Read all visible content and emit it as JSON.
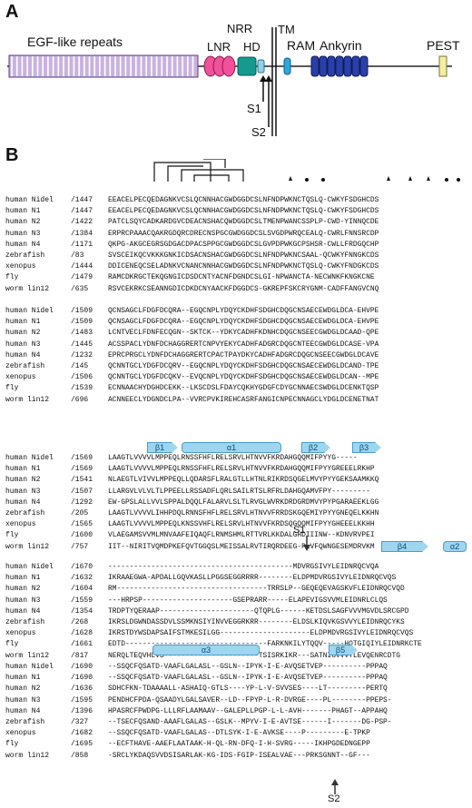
{
  "panels": {
    "a": "A",
    "b": "B"
  },
  "domains": {
    "egf": "EGF-like repeats",
    "nrr": "NRR",
    "lnr": "LNR",
    "hd": "HD",
    "tm": "TM",
    "ram": "RAM",
    "ankyrin": "Ankyrin",
    "pest": "PEST",
    "s1": "S1",
    "s2": "S2"
  },
  "species": [
    "human Nidel",
    "human N1",
    "human N2",
    "human N3",
    "human N4",
    "zebrafish",
    "xenopus",
    "fly",
    "worm lin12"
  ],
  "blocks": [
    {
      "starts": [
        "/1447",
        "/1447",
        "/1422",
        "/1384",
        "/1171",
        "/83",
        "/1444",
        "/1479",
        "/635"
      ],
      "seqs": [
        "EEACELPECQEDAGNKVCSLQCNNHACGWDGGDCSLNFNDPWKNCTQSLQ-CWKYFSDGHCDS",
        "EEACELPECQEDAGNKVCSLQCNNHACGWDGGDCSLNFNDPWKNCTQSLQ-CWKYFSDGHCDS",
        "PATCLSQYCADKARDGVCDEACNSHACQWDGGDCSLTMENPWANCSSPLP-CWD-YINNQCDE",
        "ERPRCPAAACQAKRGDQRCDRECNSPGCGWDGGDCSLSVGDPWRQCEALQ-CWRLFNNSRCDP",
        "QKPG-AKGCEGRSGDGACDPACSPPGCGWDGGDCSLGVPDPWKGCPSHSR-CWLLFRDGQCHP",
        "SVSCEIKQCVKKKGNKICDSACNSHACGWDGGDCSLNFNDPWKNCSAAL-QCWKYFNNGKCDS",
        "DDICENEQCSELADNKVCNANCNNHACGWDGGDCSLNFNDPWKNCTQSLQ-CWKYFNDGKCDS",
        "RAMCDKRGCTEKQGNGICDSDCNTYACNFDGNDCSLGI-NPWANCTA-NECWNKFKNGKCNE",
        "RSVCEKRKCSEANNGDICDKDCNYAACKFDGGDCS-GKREPFSKCRYGNM-CADFFANGVCNQ"
      ]
    },
    {
      "starts": [
        "/1509",
        "/1509",
        "/1483",
        "/1445",
        "/1232",
        "/145",
        "/1506",
        "/1539",
        "/696"
      ],
      "seqs": [
        "QCNSAGCLFDGFDCQRA--EGQCNPLYDQYCKDHFSDGHCDQGCNSAECEWDGLDCA-EHVPE",
        "QCNSAGCLFDGFDCQRA--EGQCNPLYDQYCKDHFSDGHCDQGCNSAECEWDGLDCA-EHVPE",
        "LCNTVECLFDNFECQGN--SKTCK--YDKYCADHFKDNHCDQGCNSEECGWDGLDCAAD-QPE",
        "ACSSPACLYDNFDCHAGGRERTCNPVYEKYCADHFADGRCDQGCNTEECGWDGLDCASE-VPA",
        "EPRCPRGCLYDNFDCHAGGRERTCPACTPAYDKYCADHFADGRCDQGCNSEECGWDGLDCAVE",
        "QCNNTGCLYDGFDCQRV--EGQCNPLYDQYCKDHFSDGHCDQGCNSAECEWDGLDCAND-TPE",
        "QCNNTGCLYDGFDCQKV--EVQCNPLYDQYCKDHFSDGHCDQGCNSAECEWDGLDCAN--MPE",
        "ECNNAACHYDGHDCEKK--LKSCDSLFDAYCQKHYGDGFCDYGCNNAECSWDGLDCENKTQSP",
        "ACNNEECLYDGNDCLPA--VVRCPVKIREHCASRFANGICNPECNNAGCLYDGLDCENETNAT"
      ]
    },
    {
      "starts": [
        "/1569",
        "/1569",
        "/1541",
        "/1507",
        "/1292",
        "/205",
        "/1565",
        "/1600",
        "/757"
      ],
      "seqs": [
        "LAAGTLVVVVLMPPEQLRNSSFHFLRELSRVLHTNVVFKRDAHGQQMIFPYYG-----",
        "LAAGTLVVVVLMPPEQLRNSSFHFLRELSRVLHTNVVFKRDAHGQQMIFPYYGREEELRKHP",
        "NLAEGTLVIVVLMPPEQLLQDARSFLRALGTLLHTNLRIKRDSQGELMVYPYYGEKSAAMKKQ",
        "LLARGVLVLVLTLPPEELLRSSADFLQRLSAILRTSLRFRLDAHGQAMVFPY---------",
        "EW-GPSLALLVVLSPPALDQQLFALARVLSLTLRVGLWVRKDRDGRDMVYPYPGARAEEKLGG",
        "LAAGTLVVVVLIHHPDQLRNNSFHFLRELSRVLHTNVVFRRDSKGQEMIYPYYGNEQELKKHN",
        "LAAGTLVVVVLMPPEQLKNSSVHFLRELSRVLHTNVVFKRDSQGQQMIFPYYGHEEELKKHH",
        "VLAEGAMSVVMLMNVAAFEIQAQFLRNMSHMLRTTVRLKKDALGHDIIINW--KDNVRVPEI",
        "IIT--NIRITVQMDPKEFQVTGGQSLMEISSALRVTIRQRDEEG-PLVFQWNGESEMDRVKM"
      ]
    },
    {
      "starts": [
        "/1670",
        "/1632",
        "/1604",
        "/1559",
        "/1354",
        "/268",
        "/1628",
        "/1661",
        "/817"
      ],
      "seqs": [
        "-------------------------------------------MDVRGSIVYLEIDNRQCVQA",
        "IKRAAEGWA-APDALLGQVKASLLPGGSEGGRRRR--------ELDPMDVRGSIVYLEIDNRQCVQS",
        "RM-----------------------------------TRRSLP--GEQEQEVAGSKVFLEIDNRQCVQD",
        "---HRPSP---------------------GSEPRARR-----ELAPEVIGSVVMLEIDNRLCLQS",
        "TRDPTYQERAAP----------------------QTQPLG------KETDSLSAGFVVVMGVDLSRCGPD",
        "IKRSLDGWNDASSDVLSSMKNSIYINVVEGGRKRR--------ELDSLKIQVKGSVVYLEIDNRQCYKS",
        "IKRSTDYWSDAPSAIFSTMKESILGG---------------------ELDPMDVRGSIVYLEIDNRQCVQS",
        "EDTD---------------------------------FARKNKILYTQQV-----HQTGIQIYLEIDNRKCTE",
        "NERQLTEQVHLVS----------------------TSISRKIKR---SATNIGVVVYLEVQENRCDTG"
      ]
    },
    {
      "starts": [
        "/1690",
        "/1690",
        "/1636",
        "/1595",
        "/1396",
        "/327",
        "/1682",
        "/1695",
        "/858"
      ],
      "seqs": [
        "--SSQCFQSATD-VAAFLGALASL--GSLN--IPYK-I-E-AVQSETVEP----------PPPAQ",
        "--SSQCFQSATD-VAAFLGALASL--GSLN--IPYK-I-E-AVQSETVEP----------PPPAQ",
        "SDHCFKN-TDAAAALL-ASHAIQ-GTLS----YP-L-V-SVVSES----LT---------PERTQ",
        "PENDHCFPDA-QSAADYLGALSAVER--LD--FPYP-L-R-DVRGE----PL--------PPEPS-",
        "HPASRCFPWDPG-LLLRFLAAMAAV--GALEPLLPGP-L-L-AVH-------PHAGT--APPAHQ",
        "--TSECFQSAND-AAAFLGALAS--GSLK--MPYV-I-E-AVTSE------I-------DG-PSP-",
        "--SSQCFQSATD-VAAFLGALAS--DTLSYK-I-E-AVKSE----P---------E-TPKP",
        "--ECFTHAVE-AAEFLAATAAK-H-QL-RN-DFQ-I-H-SVRG-----IKHPGDEDNGEPP",
        "-SRCLYKDAQSVVDSISARLAK-KG-IDS-FGIP-ISEALVAE---PRKSGNNT--GF---"
      ]
    }
  ],
  "secondary_structure": {
    "block3": [
      "β1",
      "α1",
      "β2",
      "β3"
    ],
    "block4": [
      "β4",
      "α2"
    ],
    "block5": [
      "α3",
      "β5"
    ]
  },
  "site_labels": {
    "s1": "S1",
    "s2": "S2"
  }
}
